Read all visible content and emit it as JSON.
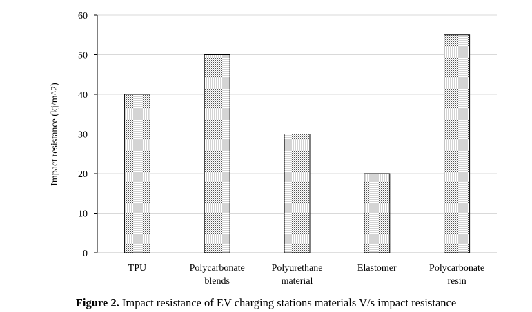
{
  "chart_data": {
    "type": "bar",
    "categories": [
      [
        "TPU"
      ],
      [
        "Polycarbonate",
        "blends"
      ],
      [
        "Polyurethane",
        "material"
      ],
      [
        "Elastomer"
      ],
      [
        "Polycarbonate",
        "resin"
      ]
    ],
    "values": [
      40,
      50,
      30,
      20,
      55
    ],
    "title": "",
    "xlabel": "",
    "ylabel": "Impact resistance (kj/m^2)",
    "ylim": [
      0,
      60
    ],
    "yticks": [
      0,
      10,
      20,
      30,
      40,
      50,
      60
    ],
    "grid": true,
    "bar_fill": "dotted",
    "colors": {
      "bar_dots": "#555555",
      "bar_edge": "#000000",
      "grid": "#d9d9d9",
      "axis": "#000000"
    }
  },
  "caption": {
    "label": "Figure 2.",
    "text": " Impact resistance of EV charging stations materials V/s impact resistance"
  }
}
